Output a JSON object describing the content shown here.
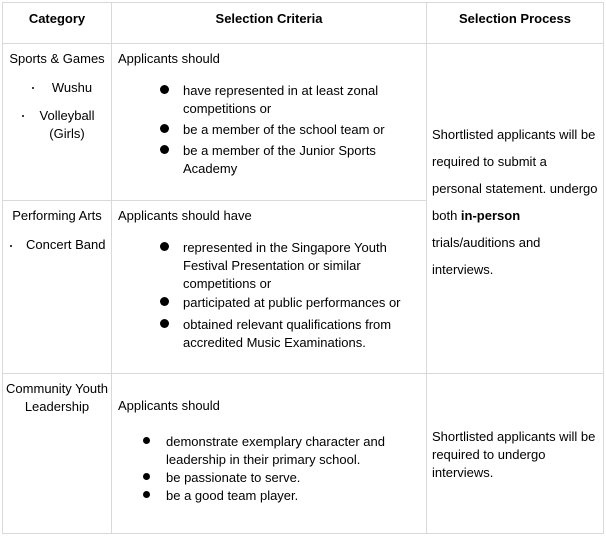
{
  "headers": {
    "category": "Category",
    "criteria": "Selection Criteria",
    "process": "Selection Process"
  },
  "sports": {
    "category_title": "Sports & Games",
    "items": [
      "Wushu",
      "Volleyball (Girls)"
    ],
    "intro": "Applicants should",
    "criteria": [
      "have represented in at least zonal competitions or",
      "be a member of the school team or",
      "be a member of the Junior Sports Academy"
    ]
  },
  "arts": {
    "category_title": "Performing Arts",
    "items": [
      "Concert Band"
    ],
    "intro": "Applicants should have",
    "criteria": [
      "represented in the Singapore Youth Festival Presentation or similar competitions or",
      "participated at public performances or",
      "obtained relevant qualifications from accredited Music Examinations."
    ]
  },
  "shared_process": {
    "text_before": "Shortlisted applicants will be required to submit a personal statement. undergo both ",
    "bold": "in-person",
    "text_after": " trials/auditions and interviews."
  },
  "cyl": {
    "category_title": "Community Youth Leadership",
    "intro": "Applicants should",
    "criteria": [
      "demonstrate exemplary character and leadership in their primary school.",
      "be passionate to serve.",
      "be a good team player."
    ],
    "process": "Shortlisted applicants will be required to undergo interviews."
  }
}
